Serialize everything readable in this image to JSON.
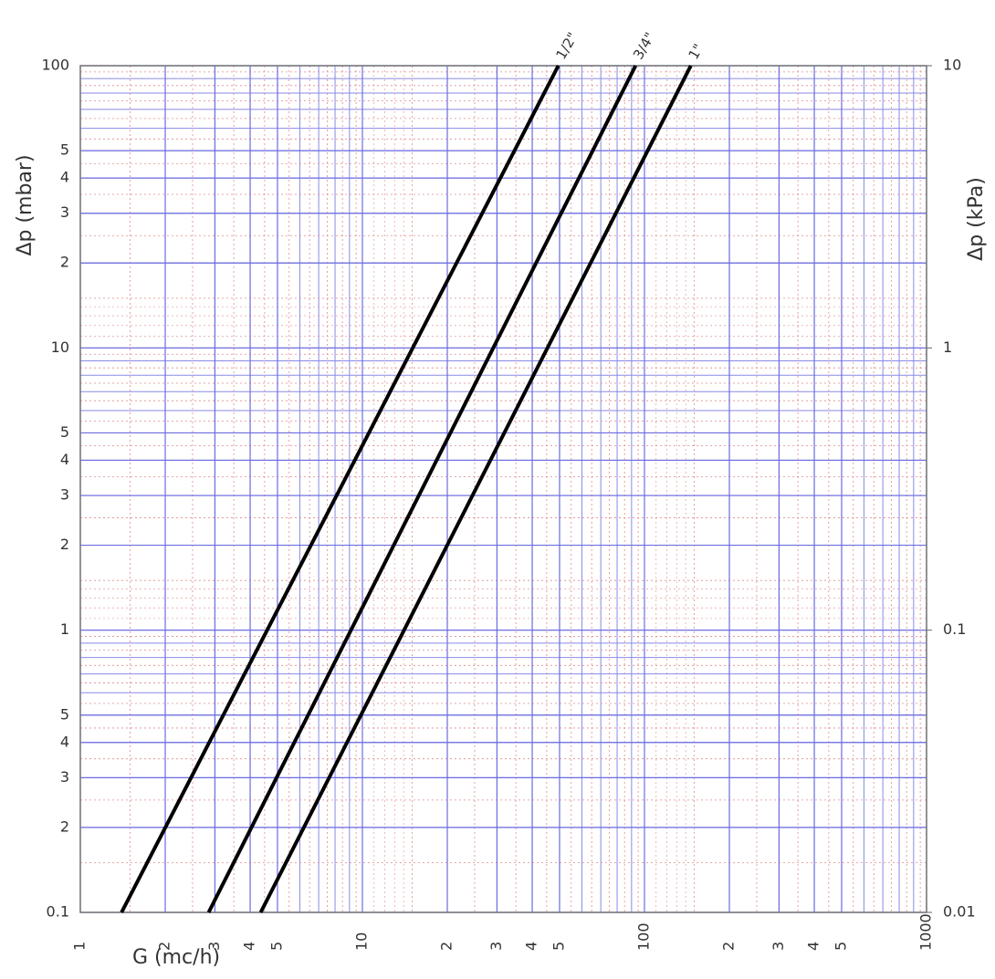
{
  "chart_data": {
    "type": "line",
    "xlabel": "G (mc/h)",
    "ylabel": "Δp (mbar)",
    "y2label": "Δp (kPa)",
    "log_x": true,
    "log_y": true,
    "grid": true,
    "xlim": [
      1,
      1000
    ],
    "xticks": [
      1,
      2,
      3,
      4,
      5,
      10,
      {
        "value": 20,
        "label": "2"
      },
      {
        "value": 30,
        "label": "3"
      },
      {
        "value": 40,
        "label": "4"
      },
      {
        "value": 50,
        "label": "5"
      },
      100,
      {
        "value": 200,
        "label": "2"
      },
      {
        "value": 300,
        "label": "3"
      },
      {
        "value": 400,
        "label": "4"
      },
      {
        "value": 500,
        "label": "5"
      },
      1000
    ],
    "ylim": [
      0.1,
      100
    ],
    "yticks": [
      0.1,
      {
        "value": 0.2,
        "label": "2"
      },
      {
        "value": 0.3,
        "label": "3"
      },
      {
        "value": 0.4,
        "label": "4"
      },
      {
        "value": 0.5,
        "label": "5"
      },
      1,
      2,
      3,
      4,
      5,
      10,
      {
        "value": 20,
        "label": "2"
      },
      {
        "value": 30,
        "label": "3"
      },
      {
        "value": 40,
        "label": "4"
      },
      {
        "value": 50,
        "label": "5"
      },
      100
    ],
    "y2lim": [
      0.01,
      10
    ],
    "y2ticks": [
      0.01,
      0.1,
      1,
      10
    ],
    "series": [
      {
        "name": "1/2\"",
        "color": "#000000",
        "x": [
          1.4,
          49.5
        ],
        "values": [
          0.1,
          100
        ]
      },
      {
        "name": "3/4\"",
        "color": "#000000",
        "x": [
          2.85,
          93
        ],
        "values": [
          0.1,
          100
        ]
      },
      {
        "name": "1\"",
        "color": "#000000",
        "x": [
          4.36,
          146
        ],
        "values": [
          0.1,
          100
        ]
      }
    ]
  }
}
